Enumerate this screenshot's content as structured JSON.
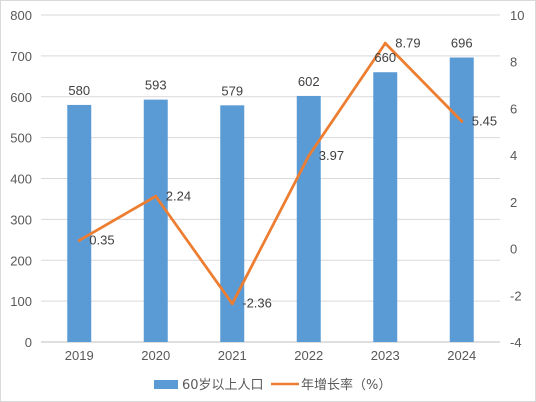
{
  "chart_data": {
    "type": "bar",
    "categories": [
      "2019",
      "2020",
      "2021",
      "2022",
      "2023",
      "2024"
    ],
    "series": [
      {
        "name": "60岁以上人口",
        "type": "bar",
        "axis": "left",
        "color": "#5b9bd5",
        "values": [
          580,
          593,
          579,
          602,
          660,
          696
        ]
      },
      {
        "name": "年增长率（%）",
        "type": "line",
        "axis": "right",
        "color": "#ed7d31",
        "values": [
          0.35,
          2.24,
          -2.36,
          3.97,
          8.79,
          5.45
        ]
      }
    ],
    "y_left": {
      "min": 0,
      "max": 800,
      "ticks": [
        0,
        100,
        200,
        300,
        400,
        500,
        600,
        700,
        800
      ]
    },
    "y_right": {
      "min": -4,
      "max": 10,
      "ticks": [
        -4,
        -2,
        0,
        2,
        4,
        6,
        8,
        10
      ]
    },
    "data_labels": {
      "bars": [
        "580",
        "593",
        "579",
        "602",
        "660",
        "696"
      ],
      "line": [
        "0.35",
        "2.24",
        "-2.36",
        "3.97",
        "8.79",
        "5.45"
      ]
    },
    "grid": true,
    "legend": {
      "position": "bottom",
      "entries": [
        "60岁以上人口",
        "年增长率（%）"
      ]
    },
    "title": "",
    "xlabel": "",
    "ylabel": ""
  }
}
